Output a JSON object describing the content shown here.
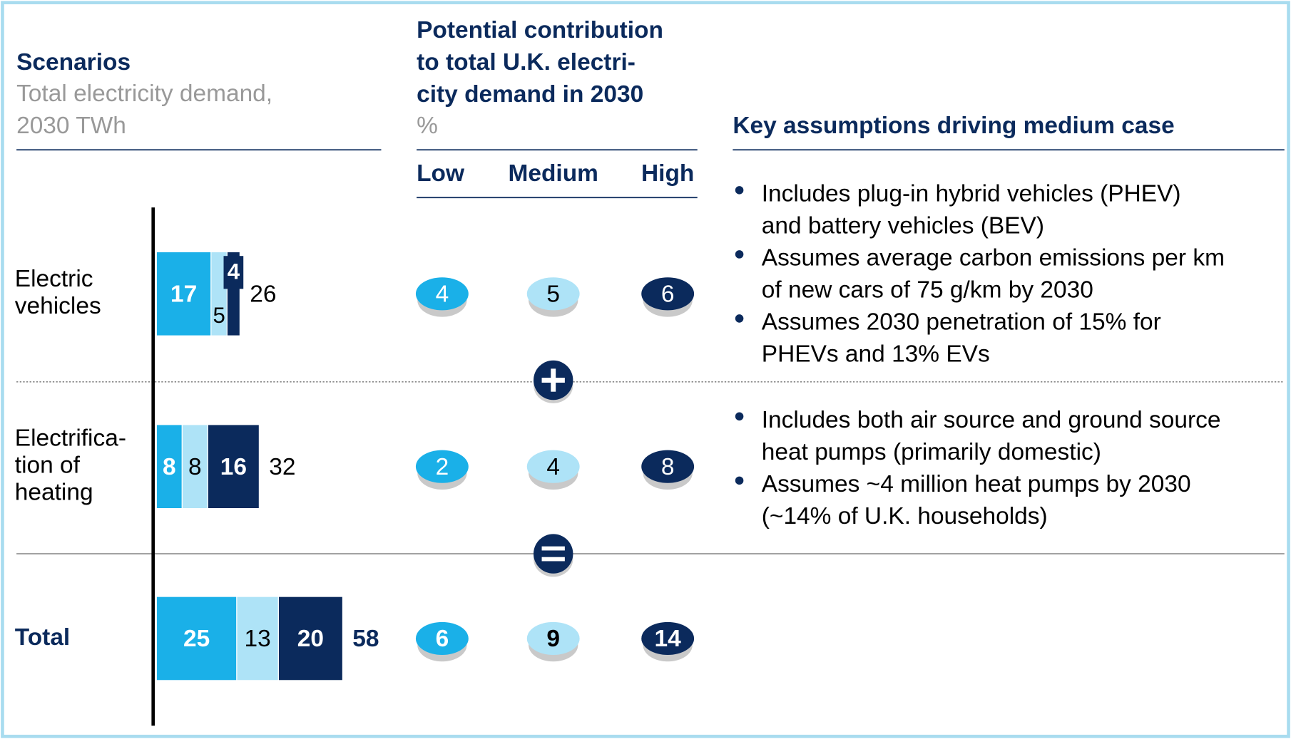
{
  "scenarios": {
    "title": "Scenarios",
    "subtitle": [
      "Total electricity demand,",
      "2030 TWh"
    ]
  },
  "chart_data": {
    "type": "bar",
    "orientation": "horizontal",
    "stacked": true,
    "categories": [
      [
        "Electric",
        "vehicles"
      ],
      [
        "Electrifica-",
        "tion of",
        "heating"
      ],
      [
        "Total"
      ]
    ],
    "series": [
      {
        "name": "Low",
        "color": "#1ab0e8",
        "values": [
          17,
          8,
          25
        ]
      },
      {
        "name": "Medium",
        "color": "#aee3f7",
        "values": [
          5,
          8,
          13
        ]
      },
      {
        "name": "High",
        "color": "#0b2a5c",
        "values": [
          4,
          16,
          20
        ]
      }
    ],
    "totals": [
      26,
      32,
      58
    ]
  },
  "contribution": {
    "title": [
      "Potential contribution",
      "to total U.K. electri-",
      "city demand in 2030"
    ],
    "unit": "%",
    "rows": [
      [
        4,
        5,
        6
      ],
      [
        2,
        4,
        8
      ],
      [
        6,
        9,
        14
      ]
    ]
  },
  "assumptions": {
    "title": "Key assumptions driving medium case",
    "groups": [
      [
        [
          "Includes plug-in hybrid vehicles (PHEV)",
          "and battery vehicles (BEV)"
        ],
        [
          "Assumes average carbon emissions per km",
          "of new cars of 75 g/km by 2030"
        ],
        [
          "Assumes 2030 penetration of 15% for",
          "PHEVs and 13% EVs"
        ]
      ],
      [
        [
          "Includes both air source and ground source",
          "heat pumps (primarily domestic)"
        ],
        [
          "Assumes ~4 million heat pumps by 2030",
          "(~14% of U.K. households)"
        ]
      ]
    ]
  }
}
